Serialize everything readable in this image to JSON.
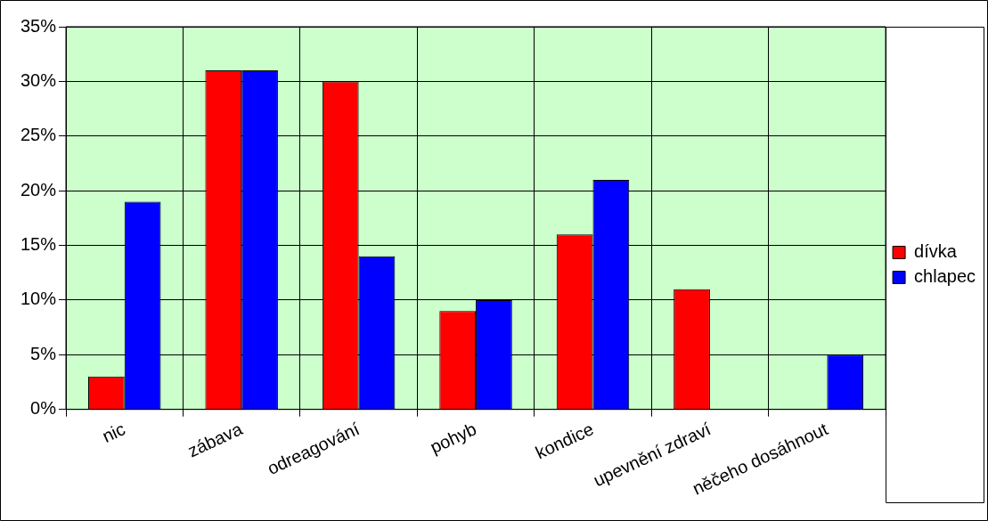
{
  "chart_data": {
    "type": "bar",
    "categories": [
      "nic",
      "zábava",
      "odreagování",
      "pohyb",
      "kondice",
      "upevnění zdraví",
      "něčeho dosáhnout"
    ],
    "series": [
      {
        "name": "dívka",
        "color": "#ff0000",
        "values": [
          3,
          31,
          30,
          9,
          16,
          11,
          0
        ]
      },
      {
        "name": "chlapec",
        "color": "#0000ff",
        "values": [
          19,
          31,
          14,
          10,
          21,
          0,
          5
        ]
      }
    ],
    "ylim": [
      0,
      35
    ],
    "yticks": [
      {
        "value": 0,
        "label": "0%"
      },
      {
        "value": 5,
        "label": "5%"
      },
      {
        "value": 10,
        "label": "10%"
      },
      {
        "value": 15,
        "label": "15%"
      },
      {
        "value": 20,
        "label": "20%"
      },
      {
        "value": 25,
        "label": "25%"
      },
      {
        "value": 30,
        "label": "30%"
      },
      {
        "value": 35,
        "label": "35%"
      }
    ],
    "grid": true,
    "legend": "right"
  }
}
